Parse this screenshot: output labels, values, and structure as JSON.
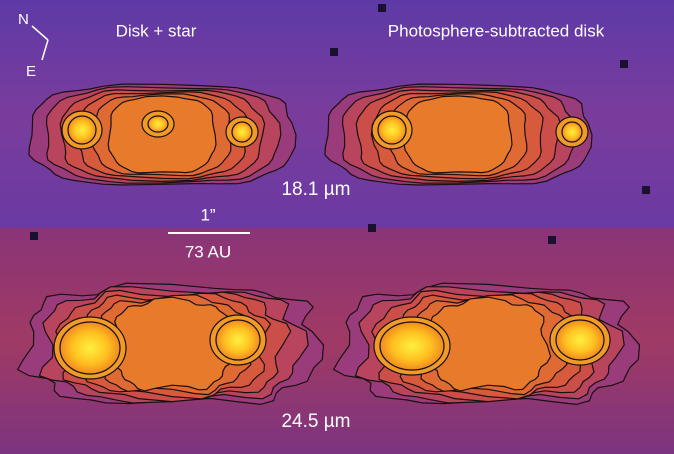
{
  "compass": {
    "north": "N",
    "east": "E"
  },
  "panels": {
    "left": "Disk + star",
    "right": "Photosphere-subtracted disk"
  },
  "wavelengths": [
    "18.1 µm",
    "24.5 µm"
  ],
  "scale_bar": {
    "angle": "1”",
    "distance": "73 AU"
  }
}
